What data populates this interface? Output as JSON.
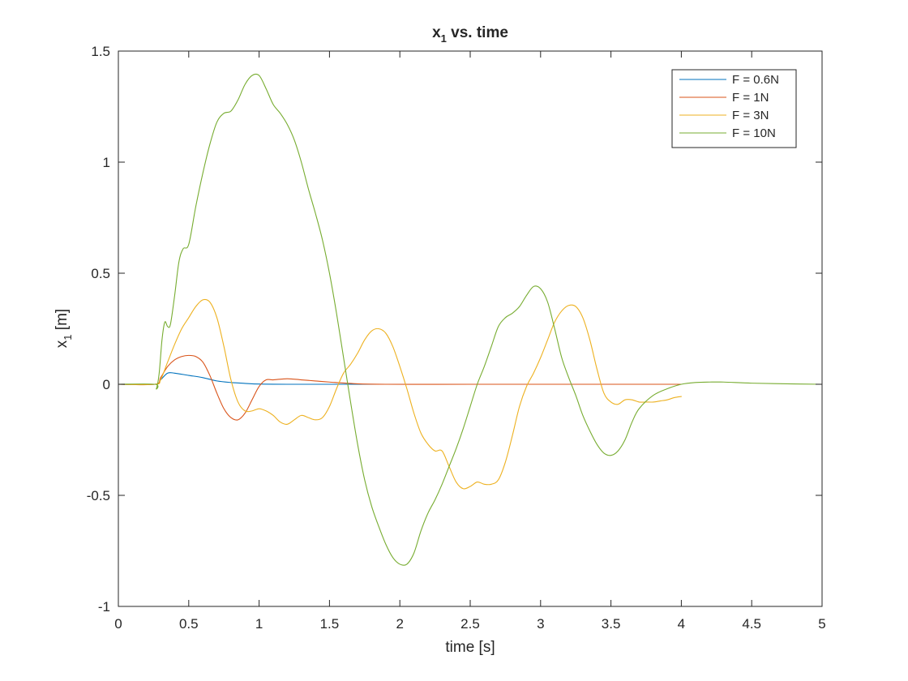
{
  "chart_data": {
    "type": "line",
    "title": "x",
    "title_subscript": "1",
    "title_suffix": " vs. time",
    "xlabel": "time [s]",
    "ylabel": "x",
    "ylabel_subscript": "1",
    "ylabel_suffix": " [m]",
    "xlim": [
      0,
      5
    ],
    "ylim": [
      -1,
      1.5
    ],
    "xticks": [
      0,
      0.5,
      1,
      1.5,
      2,
      2.5,
      3,
      3.5,
      4,
      4.5,
      5
    ],
    "xtick_labels": [
      "0",
      "0.5",
      "1",
      "1.5",
      "2",
      "2.5",
      "3",
      "3.5",
      "4",
      "4.5",
      "5"
    ],
    "yticks": [
      -1,
      -0.5,
      0,
      0.5,
      1,
      1.5
    ],
    "ytick_labels": [
      "-1",
      "-0.5",
      "0",
      "0.5",
      "1",
      "1.5"
    ],
    "grid": false,
    "legend_position": "top-right",
    "series": [
      {
        "name": "F = 0.6N",
        "color": "#0072BD",
        "points": [
          [
            0,
            0
          ],
          [
            0.26,
            0
          ],
          [
            0.3,
            0.02
          ],
          [
            0.35,
            0.05
          ],
          [
            0.4,
            0.05
          ],
          [
            0.5,
            0.04
          ],
          [
            0.6,
            0.03
          ],
          [
            0.7,
            0.015
          ],
          [
            0.8,
            0.008
          ],
          [
            0.9,
            0.004
          ],
          [
            1,
            0.001
          ],
          [
            1.2,
            0
          ],
          [
            1.5,
            0
          ],
          [
            1.9,
            0
          ]
        ]
      },
      {
        "name": "F = 1N",
        "color": "#D95319",
        "points": [
          [
            0,
            0
          ],
          [
            0.26,
            0
          ],
          [
            0.3,
            0.03
          ],
          [
            0.35,
            0.08
          ],
          [
            0.4,
            0.11
          ],
          [
            0.45,
            0.125
          ],
          [
            0.5,
            0.13
          ],
          [
            0.55,
            0.125
          ],
          [
            0.6,
            0.1
          ],
          [
            0.65,
            0.04
          ],
          [
            0.7,
            -0.04
          ],
          [
            0.75,
            -0.11
          ],
          [
            0.8,
            -0.15
          ],
          [
            0.85,
            -0.16
          ],
          [
            0.9,
            -0.13
          ],
          [
            0.95,
            -0.07
          ],
          [
            1,
            -0.01
          ],
          [
            1.05,
            0.02
          ],
          [
            1.1,
            0.02
          ],
          [
            1.2,
            0.025
          ],
          [
            1.3,
            0.02
          ],
          [
            1.4,
            0.015
          ],
          [
            1.5,
            0.01
          ],
          [
            1.7,
            0.002
          ],
          [
            1.9,
            0
          ],
          [
            2.5,
            0
          ],
          [
            3,
            0
          ],
          [
            3.5,
            0
          ],
          [
            4,
            0
          ]
        ]
      },
      {
        "name": "F = 3N",
        "color": "#EDB120",
        "points": [
          [
            0,
            0
          ],
          [
            0.26,
            0
          ],
          [
            0.3,
            0.02
          ],
          [
            0.35,
            0.1
          ],
          [
            0.4,
            0.18
          ],
          [
            0.45,
            0.25
          ],
          [
            0.5,
            0.3
          ],
          [
            0.55,
            0.35
          ],
          [
            0.6,
            0.38
          ],
          [
            0.65,
            0.37
          ],
          [
            0.7,
            0.3
          ],
          [
            0.75,
            0.17
          ],
          [
            0.8,
            0.02
          ],
          [
            0.85,
            -0.08
          ],
          [
            0.9,
            -0.12
          ],
          [
            0.95,
            -0.12
          ],
          [
            1,
            -0.11
          ],
          [
            1.05,
            -0.12
          ],
          [
            1.1,
            -0.14
          ],
          [
            1.15,
            -0.17
          ],
          [
            1.2,
            -0.18
          ],
          [
            1.25,
            -0.16
          ],
          [
            1.3,
            -0.14
          ],
          [
            1.35,
            -0.15
          ],
          [
            1.4,
            -0.16
          ],
          [
            1.45,
            -0.15
          ],
          [
            1.5,
            -0.1
          ],
          [
            1.55,
            -0.02
          ],
          [
            1.6,
            0.05
          ],
          [
            1.65,
            0.09
          ],
          [
            1.7,
            0.14
          ],
          [
            1.75,
            0.2
          ],
          [
            1.8,
            0.24
          ],
          [
            1.85,
            0.25
          ],
          [
            1.9,
            0.23
          ],
          [
            1.95,
            0.17
          ],
          [
            2,
            0.08
          ],
          [
            2.05,
            -0.02
          ],
          [
            2.1,
            -0.13
          ],
          [
            2.15,
            -0.22
          ],
          [
            2.2,
            -0.27
          ],
          [
            2.25,
            -0.3
          ],
          [
            2.3,
            -0.3
          ],
          [
            2.35,
            -0.37
          ],
          [
            2.4,
            -0.44
          ],
          [
            2.45,
            -0.47
          ],
          [
            2.5,
            -0.46
          ],
          [
            2.55,
            -0.44
          ],
          [
            2.6,
            -0.45
          ],
          [
            2.65,
            -0.45
          ],
          [
            2.7,
            -0.43
          ],
          [
            2.75,
            -0.35
          ],
          [
            2.8,
            -0.23
          ],
          [
            2.85,
            -0.1
          ],
          [
            2.9,
            -0.01
          ],
          [
            2.95,
            0.05
          ],
          [
            3,
            0.12
          ],
          [
            3.05,
            0.2
          ],
          [
            3.1,
            0.28
          ],
          [
            3.15,
            0.33
          ],
          [
            3.2,
            0.355
          ],
          [
            3.25,
            0.35
          ],
          [
            3.3,
            0.3
          ],
          [
            3.35,
            0.2
          ],
          [
            3.4,
            0.07
          ],
          [
            3.45,
            -0.04
          ],
          [
            3.5,
            -0.08
          ],
          [
            3.55,
            -0.09
          ],
          [
            3.6,
            -0.07
          ],
          [
            3.65,
            -0.07
          ],
          [
            3.7,
            -0.08
          ],
          [
            3.75,
            -0.08
          ],
          [
            3.8,
            -0.08
          ],
          [
            3.85,
            -0.075
          ],
          [
            3.9,
            -0.07
          ],
          [
            3.95,
            -0.06
          ],
          [
            4,
            -0.055
          ]
        ]
      },
      {
        "name": "F = 10N",
        "color": "#77AC30",
        "points": [
          [
            0,
            0
          ],
          [
            0.26,
            0
          ],
          [
            0.27,
            -0.02
          ],
          [
            0.29,
            0.05
          ],
          [
            0.31,
            0.2
          ],
          [
            0.33,
            0.28
          ],
          [
            0.35,
            0.26
          ],
          [
            0.37,
            0.27
          ],
          [
            0.4,
            0.4
          ],
          [
            0.43,
            0.55
          ],
          [
            0.46,
            0.61
          ],
          [
            0.5,
            0.63
          ],
          [
            0.55,
            0.8
          ],
          [
            0.6,
            0.95
          ],
          [
            0.65,
            1.08
          ],
          [
            0.7,
            1.18
          ],
          [
            0.75,
            1.22
          ],
          [
            0.8,
            1.23
          ],
          [
            0.85,
            1.28
          ],
          [
            0.9,
            1.35
          ],
          [
            0.95,
            1.39
          ],
          [
            1,
            1.39
          ],
          [
            1.05,
            1.33
          ],
          [
            1.1,
            1.26
          ],
          [
            1.15,
            1.22
          ],
          [
            1.2,
            1.17
          ],
          [
            1.25,
            1.1
          ],
          [
            1.3,
            1.0
          ],
          [
            1.35,
            0.88
          ],
          [
            1.4,
            0.77
          ],
          [
            1.45,
            0.65
          ],
          [
            1.5,
            0.5
          ],
          [
            1.55,
            0.32
          ],
          [
            1.6,
            0.12
          ],
          [
            1.65,
            -0.08
          ],
          [
            1.7,
            -0.27
          ],
          [
            1.75,
            -0.43
          ],
          [
            1.8,
            -0.55
          ],
          [
            1.85,
            -0.64
          ],
          [
            1.9,
            -0.72
          ],
          [
            1.95,
            -0.78
          ],
          [
            2,
            -0.81
          ],
          [
            2.05,
            -0.81
          ],
          [
            2.1,
            -0.76
          ],
          [
            2.15,
            -0.66
          ],
          [
            2.2,
            -0.58
          ],
          [
            2.25,
            -0.52
          ],
          [
            2.3,
            -0.45
          ],
          [
            2.35,
            -0.37
          ],
          [
            2.4,
            -0.29
          ],
          [
            2.45,
            -0.2
          ],
          [
            2.5,
            -0.1
          ],
          [
            2.55,
            0
          ],
          [
            2.6,
            0.08
          ],
          [
            2.65,
            0.17
          ],
          [
            2.7,
            0.26
          ],
          [
            2.75,
            0.3
          ],
          [
            2.8,
            0.32
          ],
          [
            2.85,
            0.35
          ],
          [
            2.9,
            0.4
          ],
          [
            2.95,
            0.44
          ],
          [
            3,
            0.43
          ],
          [
            3.05,
            0.37
          ],
          [
            3.1,
            0.25
          ],
          [
            3.15,
            0.12
          ],
          [
            3.2,
            0.03
          ],
          [
            3.25,
            -0.05
          ],
          [
            3.3,
            -0.14
          ],
          [
            3.35,
            -0.21
          ],
          [
            3.4,
            -0.27
          ],
          [
            3.45,
            -0.31
          ],
          [
            3.5,
            -0.32
          ],
          [
            3.55,
            -0.3
          ],
          [
            3.6,
            -0.25
          ],
          [
            3.65,
            -0.17
          ],
          [
            3.7,
            -0.11
          ],
          [
            3.8,
            -0.05
          ],
          [
            3.9,
            -0.02
          ],
          [
            4,
            0
          ],
          [
            4.1,
            0.008
          ],
          [
            4.2,
            0.01
          ],
          [
            4.3,
            0.01
          ],
          [
            4.5,
            0.005
          ],
          [
            4.75,
            0.002
          ],
          [
            5,
            0
          ]
        ]
      }
    ]
  }
}
